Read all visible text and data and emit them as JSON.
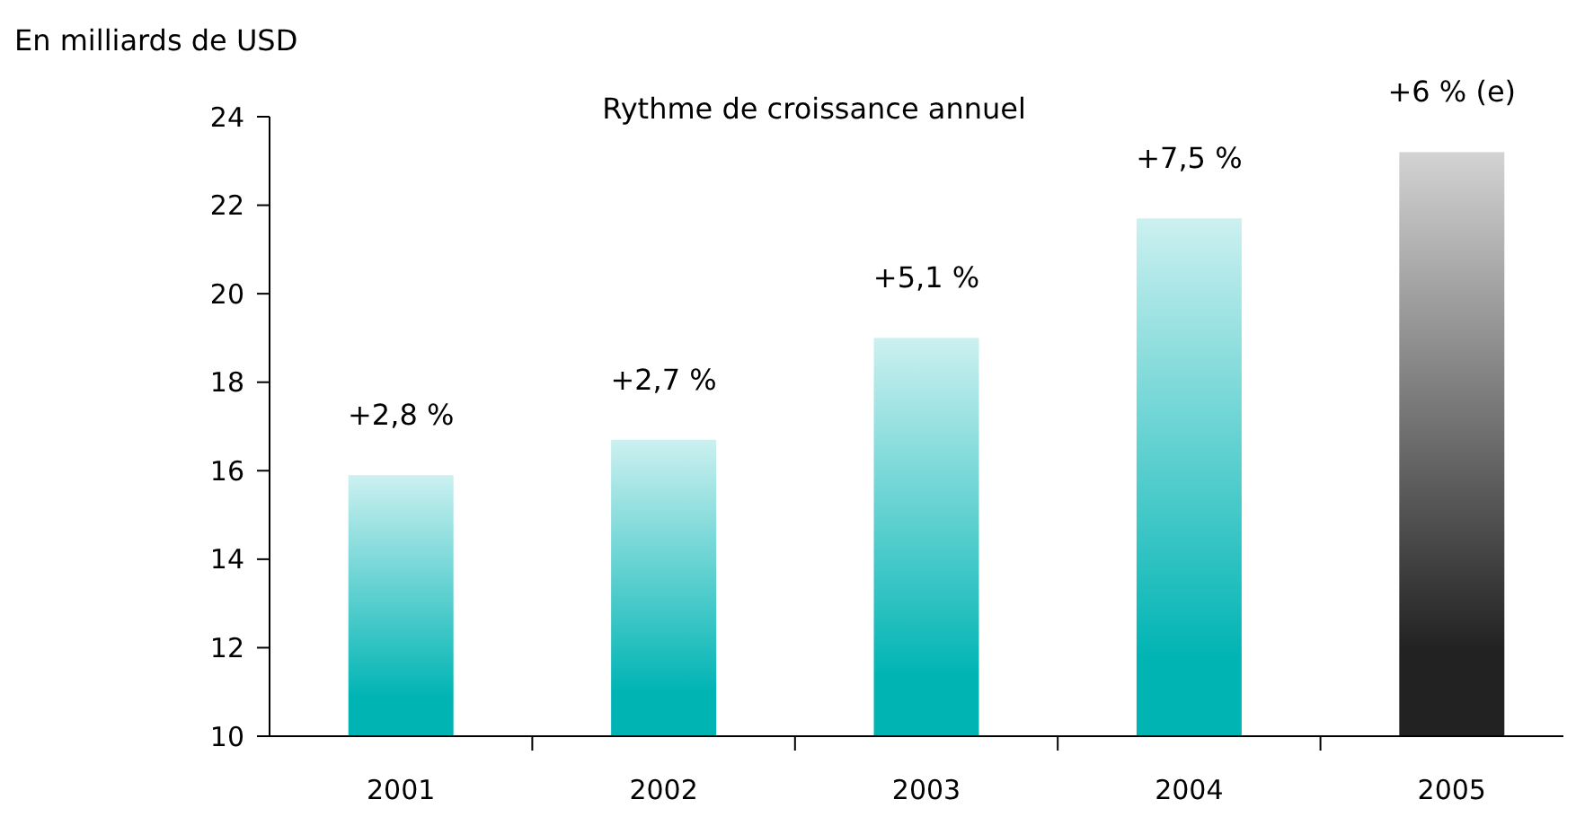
{
  "chart_data": {
    "type": "bar",
    "ylabel": "En milliards de USD",
    "annotations": [
      "Rythme de croissance annuel",
      {
        "text": "+2,8 %",
        "x": "2001",
        "y": 15.9
      },
      {
        "text": "+2,7 %",
        "x": "2002",
        "y": 16.7
      },
      {
        "text": "+5,1 %",
        "x": "2003",
        "y": 19.0
      },
      {
        "text": "+7,5 %",
        "x": "2004",
        "y": 21.7
      },
      {
        "text": "+6 % (e)",
        "x": "2005",
        "y": 23.2
      }
    ],
    "categories": [
      "2001",
      "2002",
      "2003",
      "2004",
      "2005"
    ],
    "values": [
      15.9,
      16.7,
      19.0,
      21.7,
      23.2
    ],
    "colors": [
      "#00b4b4",
      "#00b4b4",
      "#00b4b4",
      "#00b4b4",
      "#222222"
    ],
    "ylim": [
      10,
      24
    ],
    "yticks": [
      10,
      12,
      14,
      16,
      18,
      20,
      22,
      24
    ],
    "grid": false
  }
}
